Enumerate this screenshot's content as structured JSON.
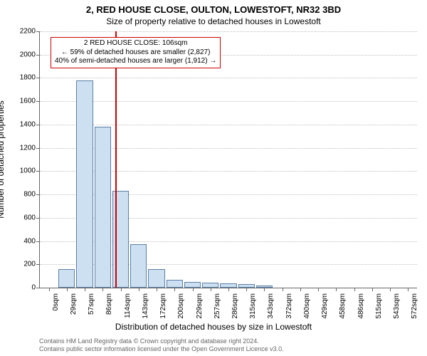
{
  "header": {
    "title_main": "2, RED HOUSE CLOSE, OULTON, LOWESTOFT, NR32 3BD",
    "title_sub": "Size of property relative to detached houses in Lowestoft"
  },
  "chart": {
    "type": "bar",
    "background_color": "#ffffff",
    "grid_color": "#bfbfbf",
    "axis_color": "#666666",
    "bar_fill": "#cce0f2",
    "bar_border": "#5b7fa6",
    "bar_width_ratio": 0.92,
    "ylim": [
      0,
      2200
    ],
    "ytick_step": 200,
    "yticks": [
      0,
      200,
      400,
      600,
      800,
      1000,
      1200,
      1400,
      1600,
      1800,
      2000,
      2200
    ],
    "categories": [
      "0sqm",
      "29sqm",
      "57sqm",
      "86sqm",
      "114sqm",
      "143sqm",
      "172sqm",
      "200sqm",
      "229sqm",
      "257sqm",
      "286sqm",
      "315sqm",
      "343sqm",
      "372sqm",
      "400sqm",
      "429sqm",
      "458sqm",
      "486sqm",
      "515sqm",
      "543sqm",
      "572sqm"
    ],
    "values": [
      0,
      160,
      1780,
      1380,
      830,
      370,
      160,
      70,
      50,
      40,
      35,
      30,
      20,
      0,
      0,
      0,
      0,
      0,
      0,
      0,
      0
    ],
    "ylabel": "Number of detached properties",
    "xlabel": "Distribution of detached houses by size in Lowestoft",
    "label_fontsize": 12,
    "tick_fontsize": 10,
    "marker": {
      "x_value_sqm": 106,
      "x_min": 0,
      "x_max_approx": 600,
      "color": "#cc0000",
      "width": 2
    },
    "annotation": {
      "border_color": "#cc0000",
      "line1": "2 RED HOUSE CLOSE: 106sqm",
      "line2": "← 59% of detached houses are smaller (2,827)",
      "line3": "40% of semi-detached houses are larger (1,912) →"
    }
  },
  "footer": {
    "line1": "Contains HM Land Registry data © Crown copyright and database right 2024.",
    "line2": "Contains public sector information licensed under the Open Government Licence v3.0."
  }
}
